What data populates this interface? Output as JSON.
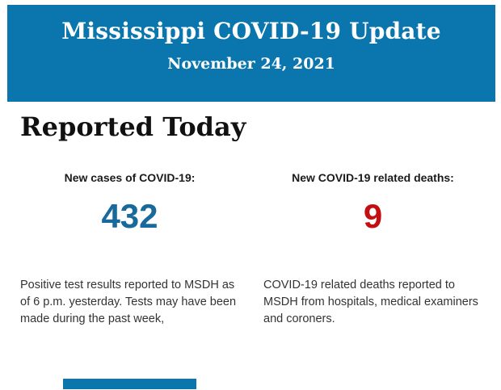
{
  "colors": {
    "header_background": "#0b76ad",
    "cases_value": "#18699c",
    "deaths_value": "#c30f10",
    "next_section": "#0b76ad"
  },
  "header": {
    "title": "Mississippi COVID-19 Update",
    "date": "November 24, 2021"
  },
  "report": {
    "heading": "Reported Today",
    "stats": [
      {
        "label": "New cases of COVID-19:",
        "value": "432",
        "description_lines": [
          "Positive test results reported to MSDH as",
          "of 6 p.m. yesterday. Tests may have been",
          "made during the past week,"
        ]
      },
      {
        "label": "New COVID-19 related deaths:",
        "value": "9",
        "description_lines": [
          "COVID-19 related deaths reported to",
          "MSDH from hospitals, medical examiners",
          "and coroners."
        ]
      }
    ]
  }
}
